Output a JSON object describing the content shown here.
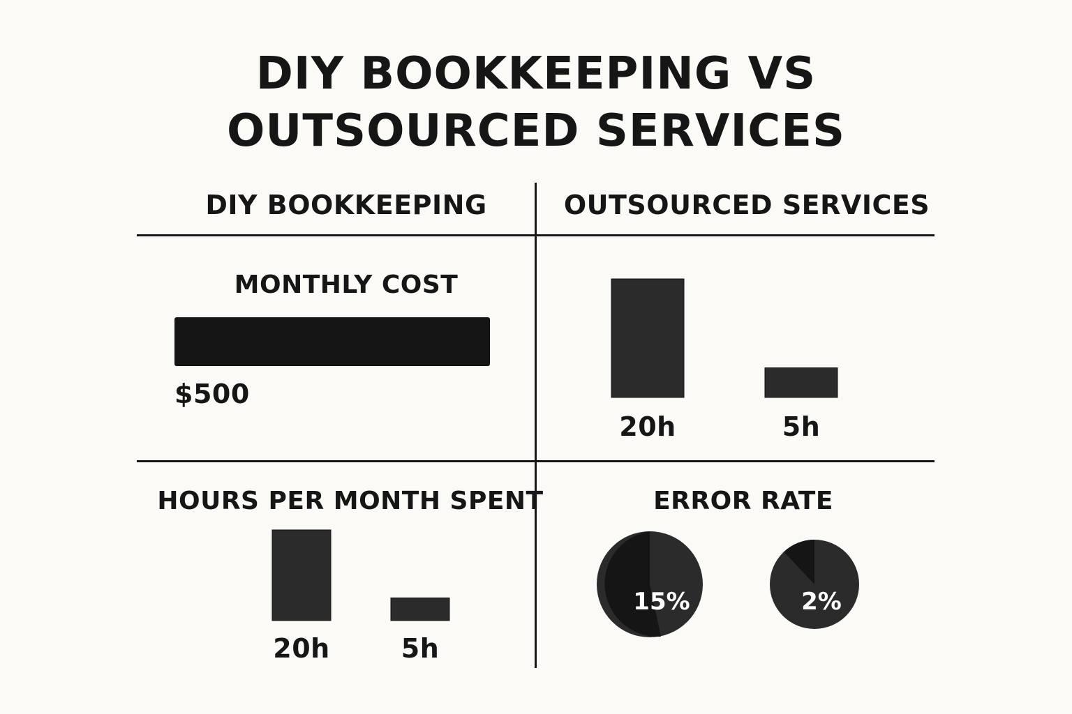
{
  "title_line1": "DIY BOOKKEEPING VS",
  "title_line2": "OUTSOURCED SERVICES",
  "columns": [
    "DIY BOOKKEEPING",
    "OUTSOURCED SERVICES"
  ],
  "colors": {
    "background": "#fbfaf6",
    "ink": "#161616",
    "bar_dark": "#151515",
    "bar": "#2b2b2b",
    "pie_light": "#2b2b2b",
    "pie_dark": "#151515",
    "pie_text": "#ffffff"
  },
  "chart_data": [
    {
      "type": "bar",
      "title": "MONTHLY COST",
      "panel": "DIY BOOKKEEPING",
      "orientation": "horizontal",
      "values": [
        500
      ],
      "labels": [
        "$500"
      ]
    },
    {
      "type": "bar",
      "title": "",
      "panel": "OUTSOURCED SERVICES",
      "categories": [
        "20h",
        "5h"
      ],
      "values": [
        20,
        5
      ],
      "ylim": [
        0,
        20
      ]
    },
    {
      "type": "bar",
      "title": "HOURS PER MONTH SPENT",
      "panel": "DIY BOOKKEEPING",
      "categories": [
        "20h",
        "5h"
      ],
      "values": [
        20,
        5
      ],
      "ylim": [
        0,
        20
      ]
    },
    {
      "type": "pie",
      "title": "ERROR RATE",
      "panel": "OUTSOURCED SERVICES",
      "pies": [
        {
          "label": "15%",
          "value": 15
        },
        {
          "label": "2%",
          "value": 2
        }
      ]
    }
  ]
}
